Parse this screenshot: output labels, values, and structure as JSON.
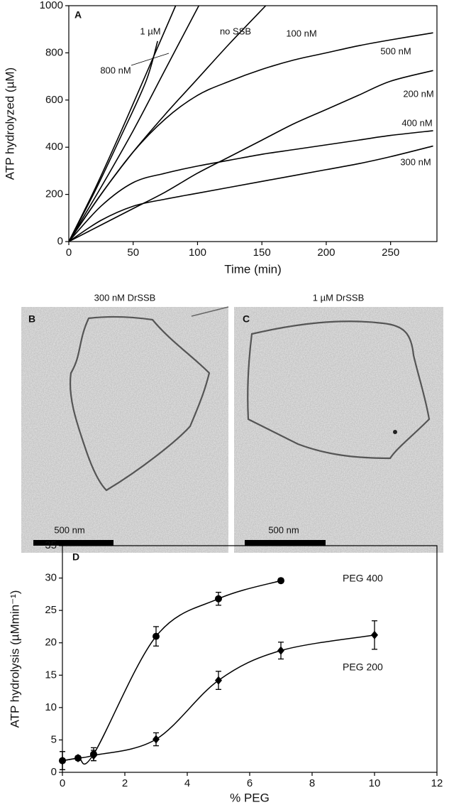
{
  "chart_data": [
    {
      "type": "line",
      "title": "A",
      "xlabel": "Time (min)",
      "ylabel": "ATP hydrolyzed (µM)",
      "xlim": [
        0,
        286
      ],
      "ylim": [
        0,
        1000
      ],
      "xticks": [
        0,
        50,
        100,
        150,
        200,
        250
      ],
      "yticks": [
        0,
        200,
        400,
        600,
        800,
        1000
      ],
      "series": [
        {
          "name": "1 µM",
          "color": "#000000",
          "x": [
            0,
            20,
            40,
            60,
            69
          ],
          "values": [
            0,
            210,
            440,
            680,
            850
          ]
        },
        {
          "name": "800 nM",
          "color": "#000000",
          "x": [
            0,
            20,
            40,
            60,
            83
          ],
          "values": [
            0,
            220,
            460,
            710,
            1000
          ]
        },
        {
          "name": "no SSB",
          "color": "#000000",
          "x": [
            0,
            25,
            50,
            75,
            101
          ],
          "values": [
            0,
            230,
            470,
            730,
            1000
          ]
        },
        {
          "name": "100 nM",
          "color": "#000000",
          "x": [
            0,
            25,
            50,
            75,
            100,
            125,
            153
          ],
          "values": [
            0,
            200,
            380,
            540,
            690,
            840,
            1000
          ]
        },
        {
          "name": "500 nM",
          "color": "#000000",
          "x": [
            0,
            25,
            50,
            75,
            100,
            125,
            150,
            175,
            200,
            225,
            250,
            283
          ],
          "values": [
            0,
            200,
            380,
            520,
            620,
            680,
            730,
            770,
            800,
            830,
            855,
            885
          ]
        },
        {
          "name": "200 nM",
          "color": "#000000",
          "x": [
            0,
            25,
            50,
            75,
            100,
            125,
            150,
            175,
            200,
            225,
            250,
            283
          ],
          "values": [
            0,
            70,
            140,
            210,
            290,
            360,
            430,
            500,
            560,
            620,
            680,
            725
          ]
        },
        {
          "name": "400 nM",
          "color": "#000000",
          "x": [
            0,
            25,
            50,
            75,
            100,
            125,
            150,
            175,
            200,
            225,
            250,
            283
          ],
          "values": [
            0,
            150,
            250,
            290,
            320,
            345,
            370,
            390,
            410,
            430,
            450,
            470
          ]
        },
        {
          "name": "300 nM",
          "color": "#000000",
          "x": [
            0,
            25,
            50,
            75,
            100,
            125,
            150,
            175,
            200,
            225,
            250,
            283
          ],
          "values": [
            0,
            90,
            150,
            180,
            205,
            230,
            255,
            280,
            305,
            330,
            360,
            405
          ]
        }
      ]
    },
    {
      "type": "scatter",
      "title": "D",
      "xlabel": "% PEG",
      "ylabel": "ATP hydrolysis (µMmin⁻¹)",
      "xlim": [
        0,
        12
      ],
      "ylim": [
        0,
        35
      ],
      "xticks": [
        0,
        2,
        4,
        6,
        8,
        10,
        12
      ],
      "yticks": [
        0,
        5,
        10,
        15,
        20,
        25,
        30,
        35
      ],
      "series": [
        {
          "name": "PEG 400",
          "color": "#000000",
          "marker": "circle",
          "x": [
            0,
            0.5,
            1,
            3,
            5,
            7
          ],
          "values": [
            1.8,
            2.2,
            2.8,
            21,
            26.8,
            29.6
          ],
          "errors": [
            1.4,
            0.3,
            1.0,
            1.5,
            1.0,
            0.3
          ]
        },
        {
          "name": "PEG 200",
          "color": "#000000",
          "marker": "diamond",
          "x": [
            0,
            0.5,
            1,
            3,
            5,
            7,
            10
          ],
          "values": [
            1.8,
            2.2,
            2.6,
            5.1,
            14.2,
            18.8,
            21.2
          ],
          "errors": [
            1.4,
            0.3,
            0.8,
            1.0,
            1.4,
            1.3,
            2.2
          ]
        }
      ]
    }
  ],
  "micrographs": [
    {
      "panel": "B",
      "title": "300 nM DrSSB",
      "scale_bar": "500 nm"
    },
    {
      "panel": "C",
      "title": "1 µM DrSSB",
      "scale_bar": "500 nm"
    }
  ]
}
